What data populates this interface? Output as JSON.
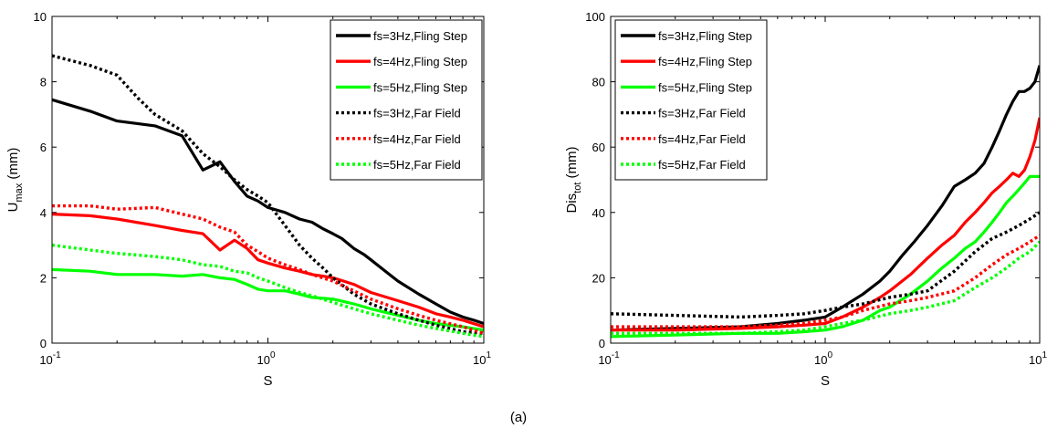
{
  "figure_label": "(a)",
  "colors": {
    "fs3": "#000000",
    "fs4": "#ff0000",
    "fs5": "#00ff00"
  },
  "chart_data": [
    {
      "type": "line",
      "xscale": "log",
      "xlim": [
        0.1,
        10
      ],
      "ylim": [
        0,
        10
      ],
      "xlabel": "S",
      "ylabel_main": "U",
      "ylabel_sub": "max",
      "ylabel_unit": " (mm)",
      "x_ticks": [
        {
          "base": "10",
          "exp": "-1"
        },
        {
          "base": "10",
          "exp": "0"
        },
        {
          "base": "10",
          "exp": "1"
        }
      ],
      "y_ticks": [
        0,
        2,
        4,
        6,
        8,
        10
      ],
      "y_tick_labels": [
        "0",
        "2",
        "4",
        "6",
        "8",
        "10"
      ],
      "legend_position": "top-right",
      "grid": false,
      "series": [
        {
          "name": "fs=3Hz,Fling Step",
          "color": "#000000",
          "dash": "solid",
          "x": [
            0.1,
            0.15,
            0.2,
            0.3,
            0.4,
            0.5,
            0.6,
            0.7,
            0.8,
            0.9,
            1.0,
            1.2,
            1.4,
            1.6,
            1.8,
            2.0,
            2.2,
            2.5,
            2.8,
            3.0,
            3.5,
            4.0,
            5.0,
            6.0,
            7.0,
            8.0,
            9.0,
            10.0
          ],
          "y": [
            7.45,
            7.1,
            6.8,
            6.65,
            6.35,
            5.3,
            5.55,
            4.95,
            4.5,
            4.35,
            4.15,
            4.0,
            3.8,
            3.7,
            3.5,
            3.35,
            3.2,
            2.9,
            2.7,
            2.55,
            2.2,
            1.9,
            1.5,
            1.2,
            0.95,
            0.8,
            0.7,
            0.6
          ]
        },
        {
          "name": "fs=4Hz,Fling Step",
          "color": "#ff0000",
          "dash": "solid",
          "x": [
            0.1,
            0.15,
            0.2,
            0.3,
            0.4,
            0.5,
            0.6,
            0.7,
            0.8,
            0.9,
            1.0,
            1.2,
            1.4,
            1.6,
            1.8,
            2.0,
            2.5,
            3.0,
            4.0,
            5.0,
            6.0,
            7.0,
            8.0,
            10.0
          ],
          "y": [
            3.95,
            3.9,
            3.8,
            3.6,
            3.45,
            3.35,
            2.85,
            3.15,
            2.9,
            2.55,
            2.45,
            2.3,
            2.2,
            2.1,
            2.05,
            2.0,
            1.8,
            1.55,
            1.3,
            1.1,
            0.9,
            0.8,
            0.7,
            0.5
          ]
        },
        {
          "name": "fs=5Hz,Fling Step",
          "color": "#00ff00",
          "dash": "solid",
          "x": [
            0.1,
            0.15,
            0.2,
            0.3,
            0.4,
            0.5,
            0.6,
            0.7,
            0.8,
            0.9,
            1.0,
            1.2,
            1.4,
            1.6,
            2.0,
            2.5,
            3.0,
            4.0,
            5.0,
            6.0,
            8.0,
            10.0
          ],
          "y": [
            2.25,
            2.2,
            2.1,
            2.1,
            2.05,
            2.1,
            2.0,
            1.95,
            1.8,
            1.65,
            1.6,
            1.6,
            1.5,
            1.4,
            1.35,
            1.2,
            1.05,
            0.85,
            0.7,
            0.6,
            0.5,
            0.4
          ]
        },
        {
          "name": "fs=3Hz,Far Field",
          "color": "#000000",
          "dash": "dotted",
          "x": [
            0.1,
            0.15,
            0.2,
            0.25,
            0.3,
            0.4,
            0.5,
            0.6,
            0.7,
            0.8,
            0.9,
            1.0,
            1.2,
            1.4,
            1.6,
            1.8,
            2.0,
            2.5,
            3.0,
            4.0,
            5.0,
            6.0,
            8.0,
            10.0
          ],
          "y": [
            8.8,
            8.5,
            8.2,
            7.5,
            7.0,
            6.5,
            5.8,
            5.4,
            5.0,
            4.7,
            4.5,
            4.3,
            3.6,
            3.0,
            2.6,
            2.3,
            2.0,
            1.5,
            1.2,
            0.9,
            0.7,
            0.55,
            0.35,
            0.3
          ]
        },
        {
          "name": "fs=4Hz,Far Field",
          "color": "#ff0000",
          "dash": "dotted",
          "x": [
            0.1,
            0.15,
            0.2,
            0.3,
            0.4,
            0.5,
            0.6,
            0.7,
            0.8,
            0.9,
            1.0,
            1.2,
            1.4,
            1.6,
            2.0,
            2.5,
            3.0,
            4.0,
            5.0,
            6.0,
            8.0,
            10.0
          ],
          "y": [
            4.2,
            4.2,
            4.1,
            4.15,
            3.95,
            3.8,
            3.55,
            3.4,
            3.0,
            2.8,
            2.6,
            2.4,
            2.25,
            2.1,
            1.9,
            1.6,
            1.35,
            1.05,
            0.85,
            0.7,
            0.5,
            0.3
          ]
        },
        {
          "name": "fs=5Hz,Far Field",
          "color": "#00ff00",
          "dash": "dotted",
          "x": [
            0.1,
            0.15,
            0.2,
            0.3,
            0.4,
            0.5,
            0.6,
            0.7,
            0.8,
            0.9,
            1.0,
            1.2,
            1.4,
            1.6,
            2.0,
            2.5,
            3.0,
            4.0,
            5.0,
            6.0,
            8.0,
            10.0
          ],
          "y": [
            3.0,
            2.85,
            2.75,
            2.65,
            2.55,
            2.4,
            2.35,
            2.2,
            2.15,
            2.0,
            1.9,
            1.7,
            1.55,
            1.45,
            1.25,
            1.05,
            0.9,
            0.7,
            0.55,
            0.45,
            0.3,
            0.2
          ]
        }
      ]
    },
    {
      "type": "line",
      "xscale": "log",
      "xlim": [
        0.1,
        10
      ],
      "ylim": [
        0,
        100
      ],
      "xlabel": "S",
      "ylabel_main": "Dis",
      "ylabel_sub": "tot",
      "ylabel_unit": " (mm)",
      "x_ticks": [
        {
          "base": "10",
          "exp": "-1"
        },
        {
          "base": "10",
          "exp": "0"
        },
        {
          "base": "10",
          "exp": "1"
        }
      ],
      "y_ticks": [
        0,
        20,
        40,
        60,
        80,
        100
      ],
      "y_tick_labels": [
        "0",
        "20",
        "40",
        "60",
        "80",
        "100"
      ],
      "legend_position": "top-left",
      "grid": false,
      "series": [
        {
          "name": "fs=3Hz,Fling Step",
          "color": "#000000",
          "dash": "solid",
          "x": [
            0.1,
            0.2,
            0.4,
            0.6,
            0.8,
            1.0,
            1.2,
            1.5,
            1.8,
            2.0,
            2.3,
            2.6,
            3.0,
            3.5,
            4.0,
            4.5,
            5.0,
            5.5,
            6.0,
            6.5,
            7.0,
            7.5,
            8.0,
            8.5,
            9.0,
            9.5,
            10.0
          ],
          "y": [
            4,
            4.5,
            5,
            6,
            7,
            8,
            11,
            15,
            19,
            22,
            27,
            31,
            36,
            42,
            48,
            50,
            52,
            55,
            60,
            65,
            70,
            74,
            77,
            77,
            78,
            80,
            85
          ]
        },
        {
          "name": "fs=4Hz,Fling Step",
          "color": "#ff0000",
          "dash": "solid",
          "x": [
            0.1,
            0.2,
            0.4,
            0.6,
            0.8,
            1.0,
            1.2,
            1.5,
            1.8,
            2.0,
            2.5,
            3.0,
            3.5,
            4.0,
            4.5,
            5.0,
            5.5,
            6.0,
            6.5,
            7.0,
            7.5,
            8.0,
            8.5,
            9.0,
            9.5,
            10.0
          ],
          "y": [
            4,
            4,
            4.5,
            5,
            5.5,
            6,
            8,
            11,
            14,
            16,
            21,
            26,
            30,
            33,
            37,
            40,
            43,
            46,
            48,
            50,
            52,
            51,
            53,
            57,
            62,
            69
          ]
        },
        {
          "name": "fs=5Hz,Fling Step",
          "color": "#00ff00",
          "dash": "solid",
          "x": [
            0.1,
            0.2,
            0.4,
            0.6,
            0.8,
            1.0,
            1.2,
            1.5,
            1.8,
            2.0,
            2.5,
            3.0,
            3.5,
            4.0,
            4.5,
            5.0,
            5.5,
            6.0,
            6.5,
            7.0,
            7.5,
            8.0,
            8.5,
            9.0,
            9.5,
            10.0
          ],
          "y": [
            2,
            2.5,
            3,
            3,
            3.5,
            4,
            5,
            7,
            10,
            11,
            15,
            19,
            23,
            26,
            29,
            31,
            34,
            37,
            40,
            43,
            45,
            47,
            49,
            51,
            51,
            51
          ]
        },
        {
          "name": "fs=3Hz,Far Field",
          "color": "#000000",
          "dash": "dotted",
          "x": [
            0.1,
            0.2,
            0.4,
            0.6,
            0.8,
            1.0,
            1.2,
            1.5,
            2.0,
            2.5,
            3.0,
            4.0,
            5.0,
            6.0,
            7.0,
            8.0,
            9.0,
            10.0
          ],
          "y": [
            9,
            8.5,
            8,
            8.5,
            9,
            10,
            11,
            12,
            14,
            15,
            16,
            22,
            28,
            32,
            34,
            36,
            38,
            40
          ]
        },
        {
          "name": "fs=4Hz,Far Field",
          "color": "#ff0000",
          "dash": "dotted",
          "x": [
            0.1,
            0.2,
            0.4,
            0.6,
            0.8,
            1.0,
            1.2,
            1.5,
            2.0,
            2.5,
            3.0,
            4.0,
            5.0,
            6.0,
            7.0,
            8.0,
            9.0,
            10.0
          ],
          "y": [
            5,
            5,
            5,
            5.5,
            6,
            7,
            8,
            10,
            12,
            13,
            14,
            16,
            20,
            24,
            27,
            29,
            31,
            33
          ]
        },
        {
          "name": "fs=5Hz,Far Field",
          "color": "#00ff00",
          "dash": "dotted",
          "x": [
            0.1,
            0.2,
            0.4,
            0.6,
            0.8,
            1.0,
            1.2,
            1.5,
            2.0,
            2.5,
            3.0,
            4.0,
            5.0,
            6.0,
            7.0,
            8.0,
            9.0,
            10.0
          ],
          "y": [
            3,
            3,
            3,
            3.5,
            4,
            5,
            6,
            7,
            9,
            10,
            11,
            13,
            17,
            20,
            23,
            26,
            28,
            31
          ]
        }
      ]
    }
  ]
}
